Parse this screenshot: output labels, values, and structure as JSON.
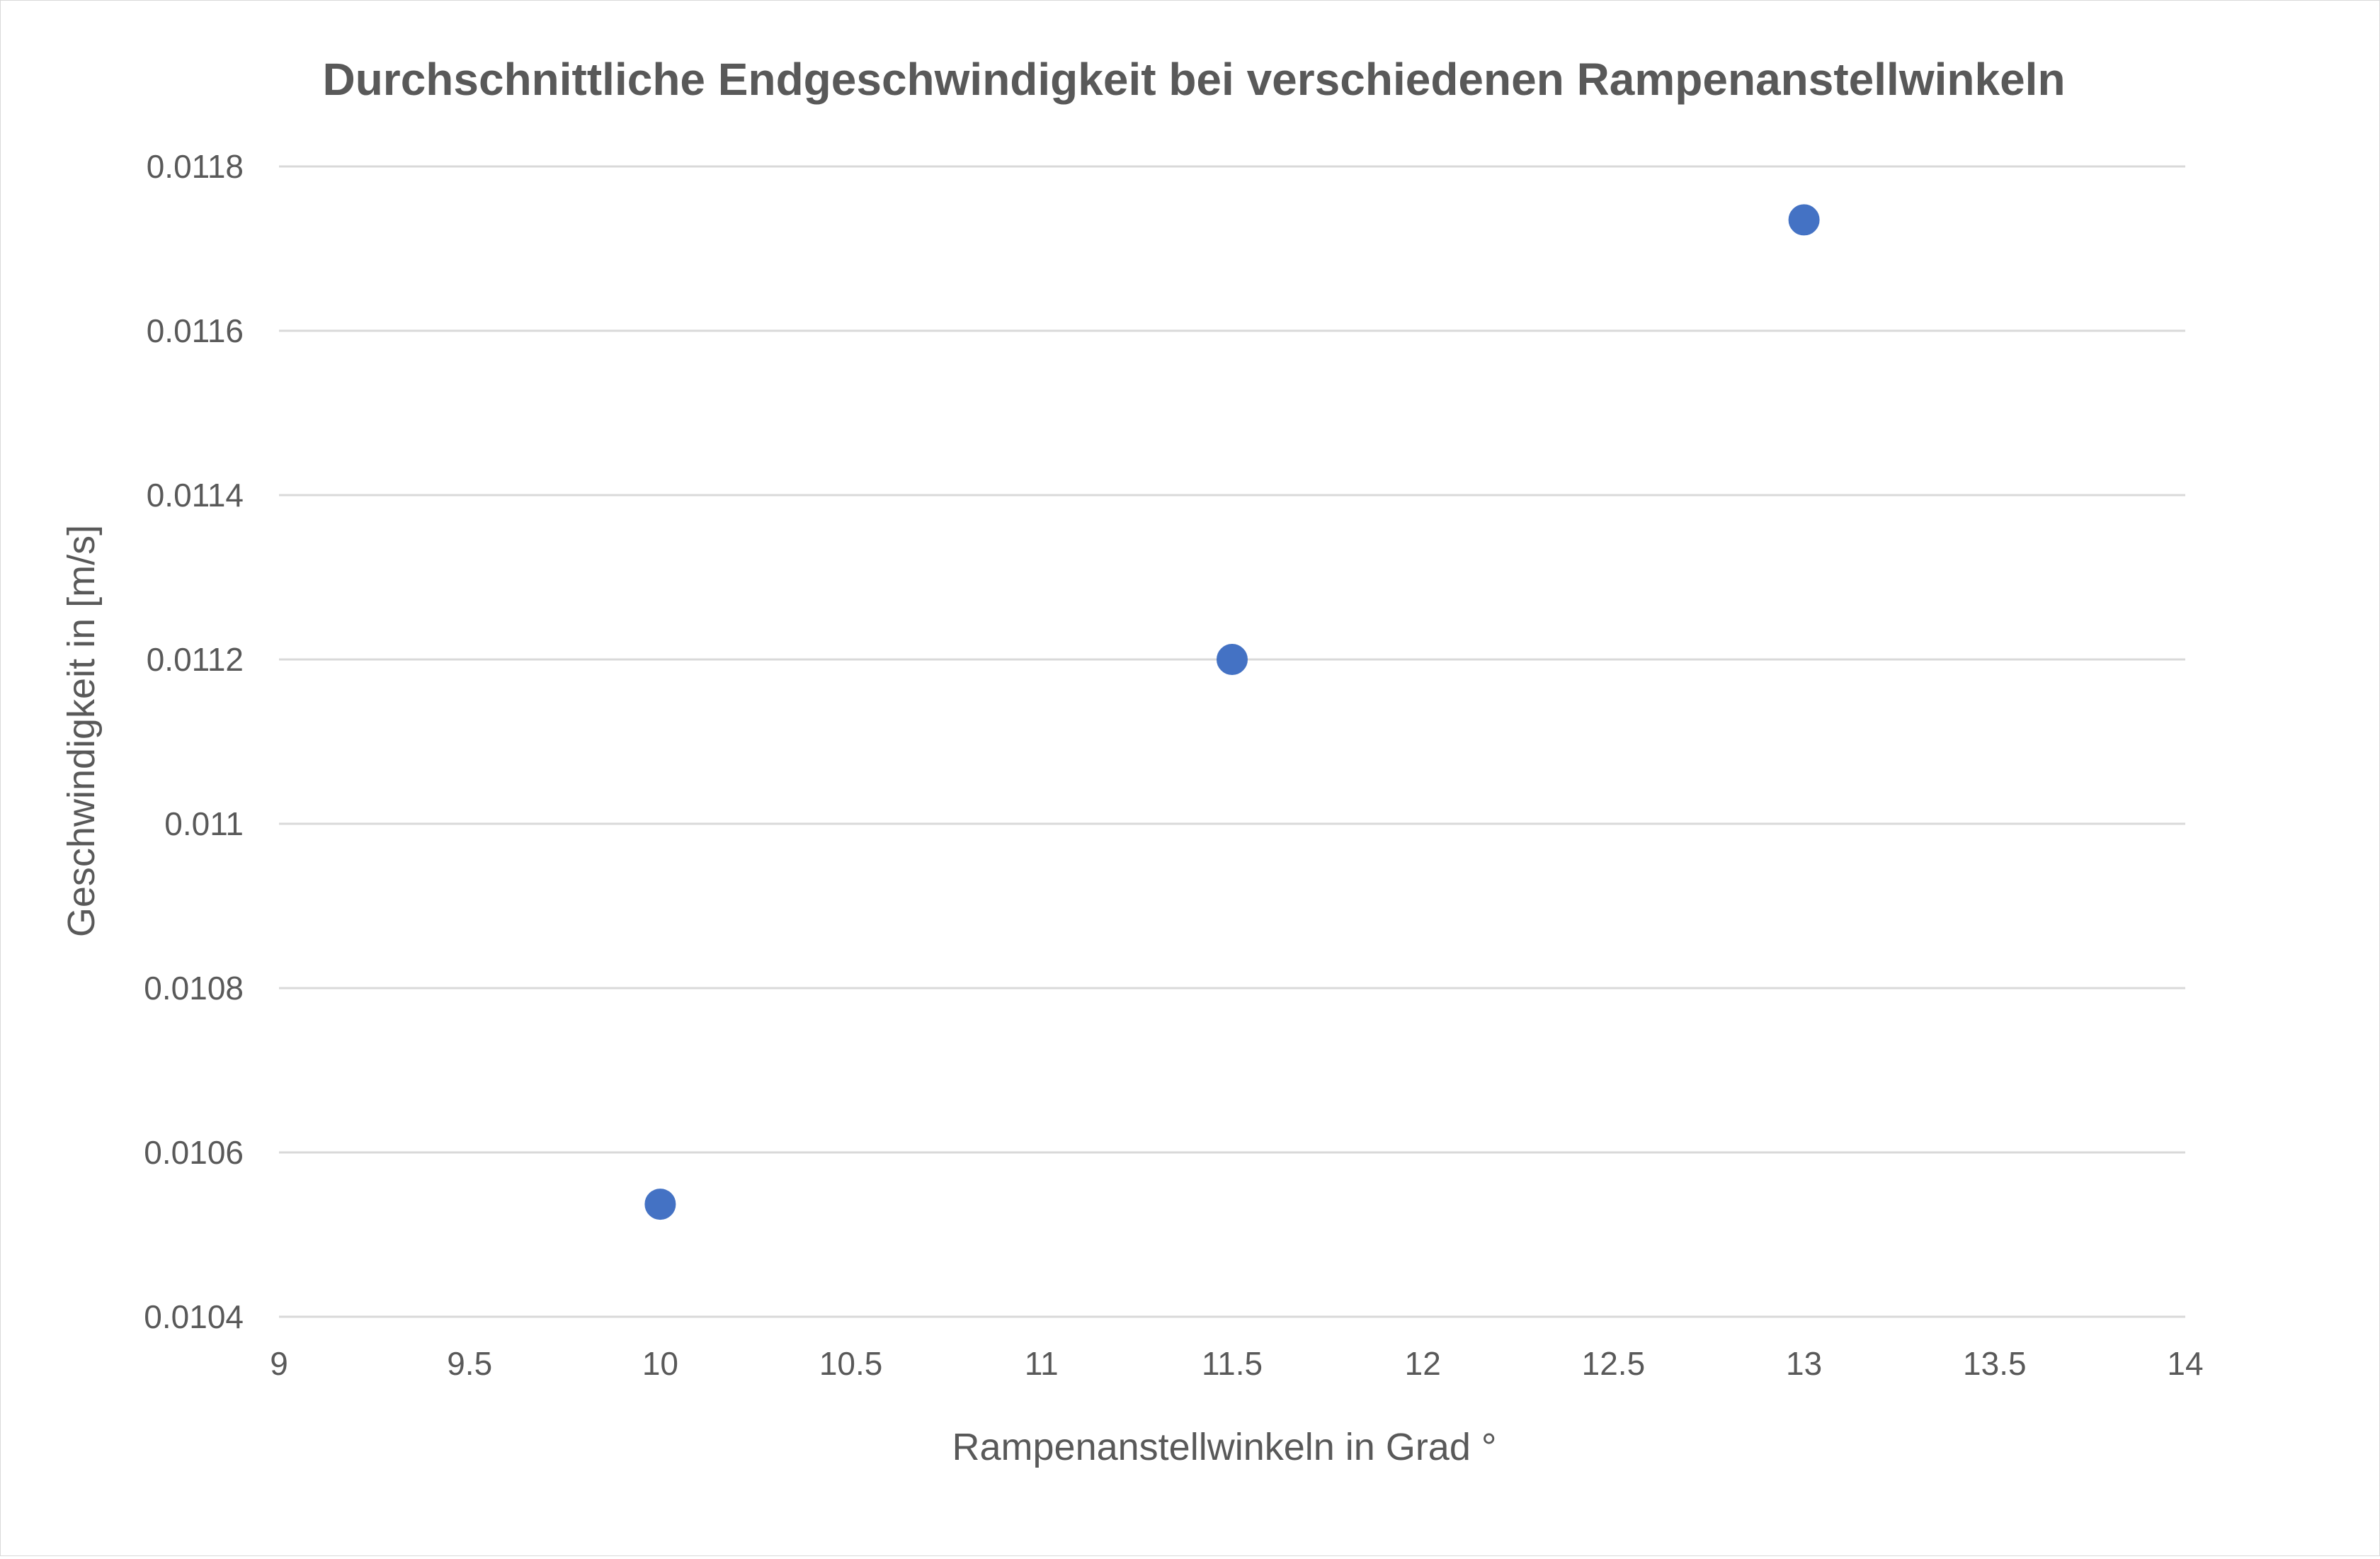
{
  "chart_data": {
    "type": "scatter",
    "title": "Durchschnittliche Endgeschwindigkeit bei verschiedenen Rampenanstellwinkeln",
    "xlabel": "Rampenanstellwinkeln in Grad °",
    "ylabel": "Geschwindigkeit in [m/s]",
    "xlim": [
      9,
      14
    ],
    "ylim": [
      0.0104,
      0.0118
    ],
    "x_ticks": [
      "9",
      "9.5",
      "10",
      "10.5",
      "11",
      "11.5",
      "12",
      "12.5",
      "13",
      "13.5",
      "14"
    ],
    "y_ticks": [
      "0.0104",
      "0.0106",
      "0.0108",
      "0.011",
      "0.0112",
      "0.0114",
      "0.0116",
      "0.0118"
    ],
    "grid": "horizontal",
    "legend": "none",
    "marker_color": "#4472c4",
    "points": [
      {
        "x": 10,
        "y": 0.010537
      },
      {
        "x": 11.5,
        "y": 0.0112
      },
      {
        "x": 13,
        "y": 0.011735
      }
    ]
  }
}
